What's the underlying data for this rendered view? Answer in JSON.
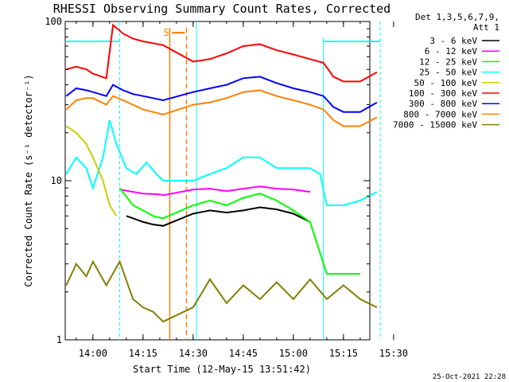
{
  "chart_data": {
    "type": "line",
    "title": "RHESSI Observing Summary Count Rates, Corrected",
    "xlabel": "Start Time (12-May-15 13:51:42)",
    "ylabel": "Corrected Count Rate (s⁻¹ detector⁻¹)",
    "yscale": "log",
    "ylim": [
      1,
      100
    ],
    "xlim": [
      "13:51:42",
      "15:30"
    ],
    "x_ticks": [
      "14:00",
      "14:15",
      "14:30",
      "14:45",
      "15:00",
      "15:15",
      "15:30"
    ],
    "y_ticks": [
      "1",
      "10",
      "100"
    ],
    "detectors_label": "Det 1,3,5,6,7,9,",
    "attenuator_label": "Att 1",
    "timestamp": "25-Oct-2021 22:28",
    "saa_marker": "S",
    "series": [
      {
        "name": "3 - 6 keV",
        "color": "#000000",
        "points": [
          [
            "14:10",
            6.0
          ],
          [
            "14:12",
            5.8
          ],
          [
            "14:15",
            5.5
          ],
          [
            "14:18",
            5.3
          ],
          [
            "14:21",
            5.2
          ],
          [
            "14:30",
            6.2
          ],
          [
            "14:35",
            6.5
          ],
          [
            "14:40",
            6.3
          ],
          [
            "14:45",
            6.5
          ],
          [
            "14:50",
            6.8
          ],
          [
            "14:55",
            6.6
          ],
          [
            "15:00",
            6.2
          ],
          [
            "15:05",
            5.5
          ]
        ]
      },
      {
        "name": "6 - 12 keV",
        "color": "#ff00ff",
        "points": [
          [
            "14:08",
            8.8
          ],
          [
            "14:12",
            8.5
          ],
          [
            "14:15",
            8.3
          ],
          [
            "14:20",
            8.2
          ],
          [
            "14:21",
            8.1
          ],
          [
            "14:30",
            8.8
          ],
          [
            "14:35",
            8.9
          ],
          [
            "14:40",
            8.6
          ],
          [
            "14:45",
            8.9
          ],
          [
            "14:50",
            9.2
          ],
          [
            "14:55",
            8.9
          ],
          [
            "15:00",
            8.8
          ],
          [
            "15:05",
            8.5
          ]
        ]
      },
      {
        "name": "12 - 25 keV",
        "color": "#00ff00",
        "points": [
          [
            "14:08",
            9.0
          ],
          [
            "14:12",
            7.0
          ],
          [
            "14:15",
            6.5
          ],
          [
            "14:18",
            6.0
          ],
          [
            "14:21",
            5.8
          ],
          [
            "14:30",
            7.0
          ],
          [
            "14:35",
            7.5
          ],
          [
            "14:40",
            7.0
          ],
          [
            "14:45",
            7.8
          ],
          [
            "14:50",
            8.3
          ],
          [
            "14:55",
            7.5
          ],
          [
            "15:00",
            6.5
          ],
          [
            "15:05",
            5.5
          ],
          [
            "15:10",
            2.6
          ],
          [
            "15:15",
            2.6
          ],
          [
            "15:20",
            2.6
          ]
        ]
      },
      {
        "name": "25 - 50 keV",
        "color": "#00ffff",
        "points": [
          [
            "13:52",
            11
          ],
          [
            "13:55",
            14
          ],
          [
            "13:58",
            12
          ],
          [
            "14:00",
            9
          ],
          [
            "14:03",
            14
          ],
          [
            "14:05",
            24
          ],
          [
            "14:07",
            17
          ],
          [
            "14:10",
            12
          ],
          [
            "14:13",
            11
          ],
          [
            "14:16",
            13
          ],
          [
            "14:19",
            11
          ],
          [
            "14:21",
            10
          ],
          [
            "14:30",
            10
          ],
          [
            "14:35",
            11
          ],
          [
            "14:40",
            12
          ],
          [
            "14:45",
            14
          ],
          [
            "14:50",
            14
          ],
          [
            "14:55",
            12
          ],
          [
            "15:00",
            12
          ],
          [
            "15:05",
            12
          ],
          [
            "15:08",
            11
          ],
          [
            "15:10",
            7
          ],
          [
            "15:15",
            7
          ],
          [
            "15:20",
            7.5
          ],
          [
            "15:25",
            8.5
          ]
        ]
      },
      {
        "name": "50 - 100 keV",
        "color": "#cccc00",
        "points": [
          [
            "13:52",
            22
          ],
          [
            "13:55",
            20
          ],
          [
            "13:58",
            17
          ],
          [
            "14:00",
            14
          ],
          [
            "14:03",
            10
          ],
          [
            "14:05",
            7
          ],
          [
            "14:07",
            6
          ]
        ]
      },
      {
        "name": "100 - 300 keV",
        "color": "#ff0000",
        "points": [
          [
            "13:52",
            50
          ],
          [
            "13:55",
            52
          ],
          [
            "13:58",
            50
          ],
          [
            "14:00",
            47
          ],
          [
            "14:04",
            44
          ],
          [
            "14:06",
            95
          ],
          [
            "14:09",
            84
          ],
          [
            "14:12",
            78
          ],
          [
            "14:15",
            75
          ],
          [
            "14:18",
            73
          ],
          [
            "14:21",
            71
          ],
          [
            "14:30",
            56
          ],
          [
            "14:35",
            58
          ],
          [
            "14:40",
            63
          ],
          [
            "14:45",
            70
          ],
          [
            "14:50",
            72
          ],
          [
            "14:55",
            66
          ],
          [
            "15:00",
            62
          ],
          [
            "15:05",
            58
          ],
          [
            "15:09",
            55
          ],
          [
            "15:12",
            45
          ],
          [
            "15:15",
            42
          ],
          [
            "15:20",
            42
          ],
          [
            "15:25",
            48
          ]
        ]
      },
      {
        "name": "300 - 800 keV",
        "color": "#0000ff",
        "points": [
          [
            "13:52",
            34
          ],
          [
            "13:55",
            38
          ],
          [
            "13:58",
            37
          ],
          [
            "14:00",
            36
          ],
          [
            "14:04",
            34
          ],
          [
            "14:06",
            40
          ],
          [
            "14:09",
            37
          ],
          [
            "14:12",
            35
          ],
          [
            "14:15",
            34
          ],
          [
            "14:18",
            33
          ],
          [
            "14:21",
            32
          ],
          [
            "14:30",
            36
          ],
          [
            "14:35",
            38
          ],
          [
            "14:40",
            40
          ],
          [
            "14:45",
            44
          ],
          [
            "14:50",
            45
          ],
          [
            "14:55",
            41
          ],
          [
            "15:00",
            38
          ],
          [
            "15:05",
            36
          ],
          [
            "15:09",
            34
          ],
          [
            "15:12",
            29
          ],
          [
            "15:15",
            27
          ],
          [
            "15:20",
            27
          ],
          [
            "15:25",
            31
          ]
        ]
      },
      {
        "name": "800 - 7000 keV",
        "color": "#ff8000",
        "points": [
          [
            "13:52",
            28
          ],
          [
            "13:55",
            32
          ],
          [
            "13:58",
            33
          ],
          [
            "14:00",
            33
          ],
          [
            "14:04",
            30
          ],
          [
            "14:06",
            34
          ],
          [
            "14:09",
            32
          ],
          [
            "14:12",
            30
          ],
          [
            "14:15",
            28
          ],
          [
            "14:18",
            27
          ],
          [
            "14:21",
            26
          ],
          [
            "14:30",
            30
          ],
          [
            "14:35",
            31
          ],
          [
            "14:40",
            33
          ],
          [
            "14:45",
            36
          ],
          [
            "14:50",
            37
          ],
          [
            "14:55",
            34
          ],
          [
            "15:00",
            32
          ],
          [
            "15:05",
            30
          ],
          [
            "15:09",
            28
          ],
          [
            "15:12",
            24
          ],
          [
            "15:15",
            22
          ],
          [
            "15:20",
            22
          ],
          [
            "15:25",
            25
          ]
        ]
      },
      {
        "name": "7000 - 15000 keV",
        "color": "#808000",
        "points": [
          [
            "13:52",
            2.2
          ],
          [
            "13:55",
            3.0
          ],
          [
            "13:58",
            2.5
          ],
          [
            "14:00",
            3.1
          ],
          [
            "14:04",
            2.2
          ],
          [
            "14:08",
            3.1
          ],
          [
            "14:12",
            1.8
          ],
          [
            "14:15",
            1.6
          ],
          [
            "14:18",
            1.5
          ],
          [
            "14:21",
            1.3
          ],
          [
            "14:30",
            1.6
          ],
          [
            "14:35",
            2.4
          ],
          [
            "14:40",
            1.7
          ],
          [
            "14:45",
            2.2
          ],
          [
            "14:50",
            1.8
          ],
          [
            "14:55",
            2.3
          ],
          [
            "15:00",
            1.8
          ],
          [
            "15:05",
            2.4
          ],
          [
            "15:10",
            1.8
          ],
          [
            "15:15",
            2.2
          ],
          [
            "15:20",
            1.8
          ],
          [
            "15:25",
            1.6
          ]
        ]
      }
    ]
  }
}
